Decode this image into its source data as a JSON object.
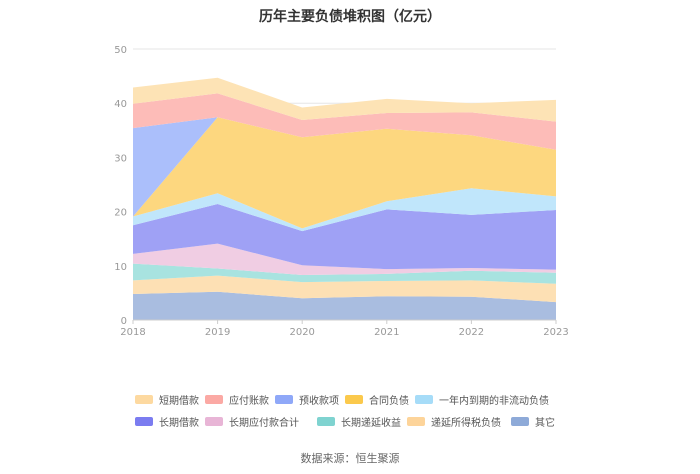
{
  "chart_data": {
    "type": "area",
    "stacked": true,
    "title": "历年主要负债堆积图（亿元）",
    "xlabel": "",
    "ylabel": "",
    "x": [
      "2018",
      "2019",
      "2020",
      "2021",
      "2022",
      "2023"
    ],
    "y_ticks": [
      "0",
      "10",
      "20",
      "30",
      "40",
      "50"
    ],
    "ylim": [
      0,
      50
    ],
    "grid": true,
    "legend_position": "bottom",
    "series": [
      {
        "name": "其它",
        "color": "#a9bde0",
        "values": [
          4.8,
          5.2,
          4.0,
          4.4,
          4.3,
          3.3
        ]
      },
      {
        "name": "递延所得税负债",
        "color": "#fde0b4",
        "values": [
          2.5,
          3.0,
          3.0,
          2.8,
          3.0,
          3.4
        ]
      },
      {
        "name": "长期递延收益",
        "color": "#a8e3e0",
        "values": [
          3.1,
          1.3,
          1.3,
          1.3,
          1.8,
          2.0
        ]
      },
      {
        "name": "长期应付款合计",
        "color": "#f0cde3",
        "values": [
          1.8,
          4.6,
          1.8,
          0.9,
          0.5,
          0.6
        ]
      },
      {
        "name": "长期借款",
        "color": "#9fa1f5",
        "values": [
          5.3,
          7.3,
          6.3,
          11.0,
          9.8,
          11.0
        ]
      },
      {
        "name": "一年内到期的非流动负债",
        "color": "#c0e6fb",
        "values": [
          1.6,
          2.0,
          0.5,
          1.5,
          4.9,
          2.5
        ]
      },
      {
        "name": "合同负债",
        "color": "#fdd77f",
        "values": [
          0.0,
          14.0,
          16.8,
          13.4,
          9.8,
          8.6
        ]
      },
      {
        "name": "预收款项",
        "color": "#abbffb",
        "values": [
          16.3,
          0.0,
          0.0,
          0.0,
          0.0,
          0.0
        ]
      },
      {
        "name": "应付账款",
        "color": "#fdbcb8",
        "values": [
          4.5,
          4.4,
          3.2,
          2.9,
          4.2,
          5.2
        ]
      },
      {
        "name": "短期借款",
        "color": "#fde3b5",
        "values": [
          3.0,
          2.9,
          2.3,
          2.6,
          1.7,
          4.0
        ]
      }
    ]
  },
  "legend": {
    "row1": [
      {
        "label": "短期借款",
        "color": "#fdd9a0"
      },
      {
        "label": "应付账款",
        "color": "#fba9a4"
      },
      {
        "label": "预收款项",
        "color": "#8fa8f8"
      },
      {
        "label": "合同负债",
        "color": "#fbc94c"
      },
      {
        "label": "一年内到期的非流动负债",
        "color": "#a6dcf8"
      }
    ],
    "row2": [
      {
        "label": "长期借款",
        "color": "#7b7cf0"
      },
      {
        "label": "长期应付款合计",
        "color": "#e8b5d6"
      },
      {
        "label": "长期递延收益",
        "color": "#7fd3d0"
      },
      {
        "label": "递延所得税负债",
        "color": "#fdd49a"
      },
      {
        "label": "其它",
        "color": "#8eaad8"
      }
    ]
  },
  "source": "数据来源：恒生聚源"
}
